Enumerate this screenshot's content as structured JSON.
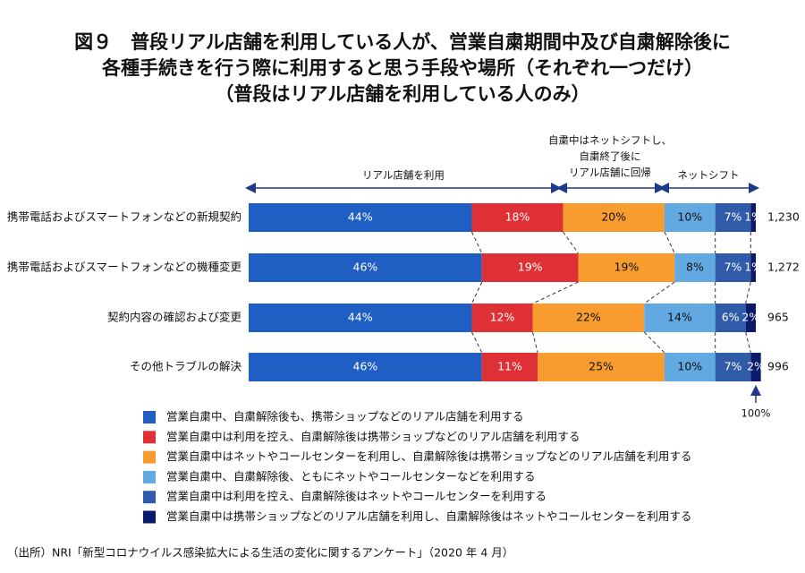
{
  "chart_data": {
    "type": "stacked_bar_horizontal",
    "title": [
      "図９　普段リアル店舗を利用している人が、営業自粛期間中及び自粛解除後に",
      "各種手続きを行う際に利用すると思う手段や場所（それぞれ一つだけ）",
      "（普段はリアル店舗を利用している人のみ）"
    ],
    "categories": [
      "携帯電話およびスマートフォンなどの新規契約",
      "携帯電話およびスマートフォンなどの機種変更",
      "契約内容の確認および変更",
      "その他トラブルの解決"
    ],
    "series": [
      {
        "name": "営業自粛中、自粛解除後も、携帯ショップなどのリアル店舗を利用する",
        "color": "#1f5fc4",
        "label_color": "#ffffff",
        "values": [
          44,
          46,
          44,
          46
        ],
        "value_labels": [
          "44%",
          "46%",
          "44%",
          "46%"
        ]
      },
      {
        "name": "営業自粛中は利用を控え、自粛解除後は携帯ショップなどのリアル店舗を利用する",
        "color": "#df3035",
        "label_color": "#ffffff",
        "values": [
          18,
          19,
          12,
          11
        ],
        "value_labels": [
          "18%",
          "19%",
          "12%",
          "11%"
        ]
      },
      {
        "name": "営業自粛中はネットやコールセンターを利用し、自粛解除後は携帯ショップなどのリアル店舗を利用する",
        "color": "#f89c30",
        "label_color": "#111111",
        "values": [
          20,
          19,
          22,
          25
        ],
        "value_labels": [
          "20%",
          "19%",
          "22%",
          "25%"
        ]
      },
      {
        "name": "営業自粛中、自粛解除後、ともにネットやコールセンターなどを利用する",
        "color": "#62a9e2",
        "label_color": "#111111",
        "values": [
          10,
          8,
          14,
          10
        ],
        "value_labels": [
          "10%",
          "8%",
          "14%",
          "10%"
        ]
      },
      {
        "name": "営業自粛中は利用を控え、自粛解除後はネットやコールセンターを利用する",
        "color": "#2f5ba9",
        "label_color": "#ffffff",
        "values": [
          7,
          7,
          6,
          7
        ],
        "value_labels": [
          "7%",
          "7%",
          "6%",
          "7%"
        ]
      },
      {
        "name": "営業自粛中は携帯ショップなどのリアル店舗を利用し、自粛解除後はネットやコールセンターを利用する",
        "color": "#0b1a6b",
        "label_color": "#ffffff",
        "values": [
          1,
          1,
          2,
          2
        ],
        "value_labels": [
          "1%",
          "1%",
          "2%",
          "2%"
        ]
      }
    ],
    "sample_sizes": [
      {
        "value": 1230,
        "label": "1,230"
      },
      {
        "value": 1272,
        "label": "1,272"
      },
      {
        "value": 965,
        "label": "965"
      },
      {
        "value": 996,
        "label": "996"
      }
    ],
    "xlim": [
      0,
      100
    ],
    "annotations": {
      "real_store": "リアル店舗を利用",
      "return": [
        "自粛中はネットシフトし、",
        "自粛終了後に",
        "リアル店舗に回帰"
      ],
      "net_shift": "ネットシフト",
      "end": "100%"
    },
    "source": "（出所）NRI「新型コロナウイルス感染拡大による生活の変化に関するアンケート」（2020 年 4 月）"
  }
}
